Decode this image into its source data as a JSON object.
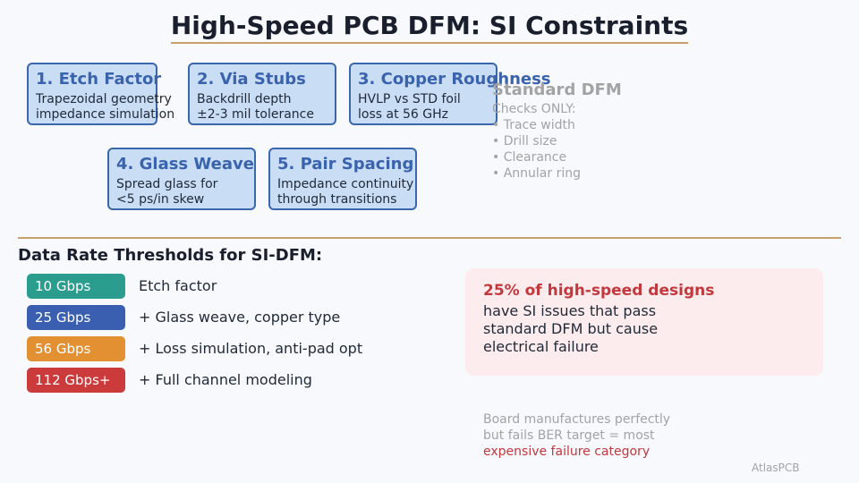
{
  "title": "High-Speed PCB DFM: SI Constraints",
  "cards": [
    {
      "title": "1. Etch Factor",
      "lines": [
        "Trapezoidal geometry",
        "impedance simulation"
      ]
    },
    {
      "title": "2. Via Stubs",
      "lines": [
        "Backdrill depth",
        "±2-3 mil tolerance"
      ]
    },
    {
      "title": "3. Copper Roughness",
      "lines": [
        "HVLP vs STD foil",
        "loss at 56 GHz"
      ]
    },
    {
      "title": "4. Glass Weave",
      "lines": [
        "Spread glass for",
        "<5 ps/in skew"
      ]
    },
    {
      "title": "5. Pair Spacing",
      "lines": [
        "Impedance continuity",
        "through transitions"
      ]
    }
  ],
  "standard_dfm": {
    "title": "Standard DFM",
    "subtitle": "Checks ONLY:",
    "items": [
      "• Trace width",
      "• Drill size",
      "• Clearance",
      "• Annular ring"
    ]
  },
  "thresholds": {
    "heading": "Data Rate Thresholds for SI-DFM:",
    "rows": [
      {
        "rate": "10 Gbps",
        "label": "Etch factor",
        "color": "#2a9d8f"
      },
      {
        "rate": "25 Gbps",
        "label": "+ Glass weave, copper type",
        "color": "#3a5fb0"
      },
      {
        "rate": "56 Gbps",
        "label": "+ Loss simulation, anti-pad opt",
        "color": "#e39032"
      },
      {
        "rate": "112 Gbps+",
        "label": "+ Full channel modeling",
        "color": "#cc3b3b"
      }
    ]
  },
  "callout": {
    "headline": "25% of high-speed designs",
    "lines": [
      "have SI issues that pass",
      "standard DFM but cause",
      "electrical failure"
    ]
  },
  "note": {
    "lines": [
      "Board manufactures perfectly",
      "but fails BER target = most"
    ],
    "highlight": "expensive failure category"
  },
  "brand": "AtlasPCB",
  "colors": {
    "accent_gold": "#c8a069",
    "card_fill": "#c9ddf5",
    "card_border": "#3a66ae",
    "alert_red": "#c2383d"
  }
}
